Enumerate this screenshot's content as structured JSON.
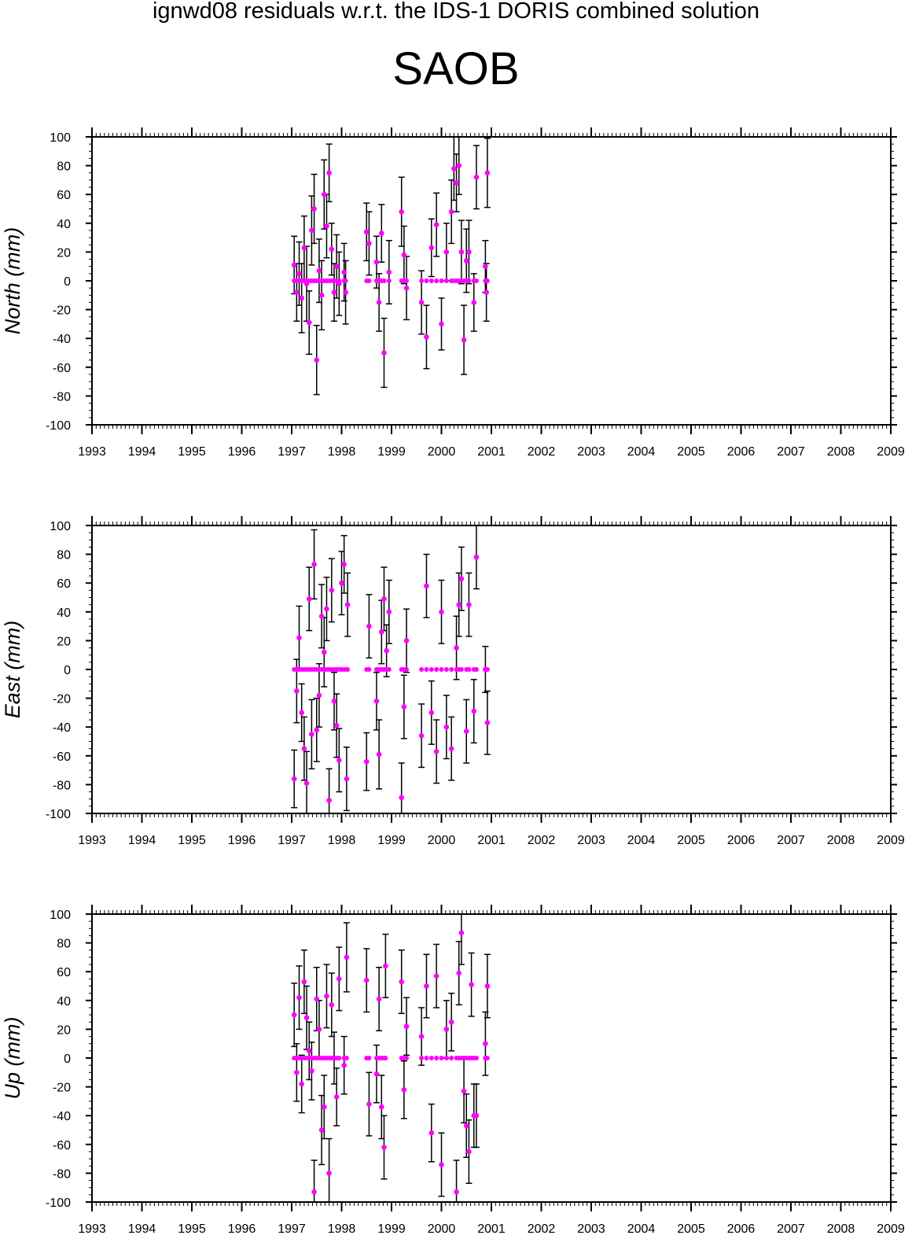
{
  "suptitle": "ignwd08 residuals w.r.t. the IDS-1 DORIS combined solution",
  "station": "SAOB",
  "colors": {
    "points": "#ff00ff",
    "errorbars": "#000000",
    "axes": "#000000"
  },
  "chart_data": [
    {
      "type": "scatter",
      "ylabel": "North (mm)",
      "xlim": [
        1993,
        2009
      ],
      "ylim": [
        -100,
        100
      ],
      "xticks": [
        "1993",
        "1994",
        "1995",
        "1996",
        "1997",
        "1998",
        "1999",
        "2000",
        "2001",
        "2002",
        "2003",
        "2004",
        "2005",
        "2006",
        "2007",
        "2008",
        "2009"
      ],
      "yticks": [
        "100",
        "80",
        "60",
        "40",
        "20",
        "0",
        "-20",
        "-40",
        "-60",
        "-80",
        "-100"
      ],
      "grid": false,
      "points": [
        {
          "x": 1997.05,
          "y": 11,
          "err": 20
        },
        {
          "x": 1997.1,
          "y": -8,
          "err": 20
        },
        {
          "x": 1997.15,
          "y": 5,
          "err": 22
        },
        {
          "x": 1997.2,
          "y": -12,
          "err": 24
        },
        {
          "x": 1997.25,
          "y": 23,
          "err": 22
        },
        {
          "x": 1997.3,
          "y": -2,
          "err": 26
        },
        {
          "x": 1997.35,
          "y": -29,
          "err": 22
        },
        {
          "x": 1997.4,
          "y": 35,
          "err": 24
        },
        {
          "x": 1997.45,
          "y": 50,
          "err": 24
        },
        {
          "x": 1997.5,
          "y": -55,
          "err": 24
        },
        {
          "x": 1997.55,
          "y": 7,
          "err": 22
        },
        {
          "x": 1997.6,
          "y": -10,
          "err": 24
        },
        {
          "x": 1997.65,
          "y": 60,
          "err": 24
        },
        {
          "x": 1997.7,
          "y": 38,
          "err": 22
        },
        {
          "x": 1997.75,
          "y": 75,
          "err": 20
        },
        {
          "x": 1997.8,
          "y": 22,
          "err": 18
        },
        {
          "x": 1997.85,
          "y": -8,
          "err": 20
        },
        {
          "x": 1997.9,
          "y": 10,
          "err": 22
        },
        {
          "x": 1997.95,
          "y": -2,
          "err": 22
        },
        {
          "x": 1998.05,
          "y": 6,
          "err": 20
        },
        {
          "x": 1998.08,
          "y": -8,
          "err": 22
        },
        {
          "x": 1998.5,
          "y": 34,
          "err": 20
        },
        {
          "x": 1998.55,
          "y": 26,
          "err": 22
        },
        {
          "x": 1998.7,
          "y": 13,
          "err": 18
        },
        {
          "x": 1998.75,
          "y": -15,
          "err": 20
        },
        {
          "x": 1998.8,
          "y": 33,
          "err": 20
        },
        {
          "x": 1998.85,
          "y": -50,
          "err": 24
        },
        {
          "x": 1998.95,
          "y": 6,
          "err": 22
        },
        {
          "x": 1999.2,
          "y": 48,
          "err": 24
        },
        {
          "x": 1999.25,
          "y": 18,
          "err": 20
        },
        {
          "x": 1999.3,
          "y": -5,
          "err": 22
        },
        {
          "x": 1999.6,
          "y": -15,
          "err": 22
        },
        {
          "x": 1999.7,
          "y": -39,
          "err": 22
        },
        {
          "x": 1999.8,
          "y": 23,
          "err": 20
        },
        {
          "x": 1999.9,
          "y": 39,
          "err": 22
        },
        {
          "x": 2000.0,
          "y": -30,
          "err": 18
        },
        {
          "x": 2000.1,
          "y": 20,
          "err": 20
        },
        {
          "x": 2000.2,
          "y": 48,
          "err": 22
        },
        {
          "x": 2000.25,
          "y": 78,
          "err": 22
        },
        {
          "x": 2000.3,
          "y": 68,
          "err": 20
        },
        {
          "x": 2000.35,
          "y": 80,
          "err": 20
        },
        {
          "x": 2000.4,
          "y": 20,
          "err": 22
        },
        {
          "x": 2000.45,
          "y": -41,
          "err": 24
        },
        {
          "x": 2000.5,
          "y": 14,
          "err": 22
        },
        {
          "x": 2000.55,
          "y": 20,
          "err": 22
        },
        {
          "x": 2000.65,
          "y": -15,
          "err": 20
        },
        {
          "x": 2000.7,
          "y": 72,
          "err": 22
        },
        {
          "x": 2000.88,
          "y": 10,
          "err": 18
        },
        {
          "x": 2000.9,
          "y": -8,
          "err": 20
        },
        {
          "x": 2000.92,
          "y": 75,
          "err": 24
        }
      ]
    },
    {
      "type": "scatter",
      "ylabel": "East (mm)",
      "xlim": [
        1993,
        2009
      ],
      "ylim": [
        -100,
        100
      ],
      "xticks": [
        "1993",
        "1994",
        "1995",
        "1996",
        "1997",
        "1998",
        "1999",
        "2000",
        "2001",
        "2002",
        "2003",
        "2004",
        "2005",
        "2006",
        "2007",
        "2008",
        "2009"
      ],
      "yticks": [
        "100",
        "80",
        "60",
        "40",
        "20",
        "0",
        "-20",
        "-40",
        "-60",
        "-80",
        "-100"
      ],
      "grid": false,
      "points": [
        {
          "x": 1997.05,
          "y": -76,
          "err": 20
        },
        {
          "x": 1997.1,
          "y": -15,
          "err": 22
        },
        {
          "x": 1997.15,
          "y": 22,
          "err": 22
        },
        {
          "x": 1997.2,
          "y": -30,
          "err": 20
        },
        {
          "x": 1997.25,
          "y": -55,
          "err": 22
        },
        {
          "x": 1997.3,
          "y": -79,
          "err": 22
        },
        {
          "x": 1997.35,
          "y": 49,
          "err": 22
        },
        {
          "x": 1997.4,
          "y": -45,
          "err": 24
        },
        {
          "x": 1997.45,
          "y": 73,
          "err": 24
        },
        {
          "x": 1997.5,
          "y": -42,
          "err": 22
        },
        {
          "x": 1997.55,
          "y": -18,
          "err": 22
        },
        {
          "x": 1997.6,
          "y": 37,
          "err": 22
        },
        {
          "x": 1997.65,
          "y": 12,
          "err": 24
        },
        {
          "x": 1997.7,
          "y": 42,
          "err": 22
        },
        {
          "x": 1997.75,
          "y": -91,
          "err": 22
        },
        {
          "x": 1997.8,
          "y": 55,
          "err": 22
        },
        {
          "x": 1997.85,
          "y": -22,
          "err": 20
        },
        {
          "x": 1997.9,
          "y": -39,
          "err": 22
        },
        {
          "x": 1997.95,
          "y": -63,
          "err": 22
        },
        {
          "x": 1998.0,
          "y": 60,
          "err": 22
        },
        {
          "x": 1998.05,
          "y": 73,
          "err": 20
        },
        {
          "x": 1998.1,
          "y": -76,
          "err": 22
        },
        {
          "x": 1998.12,
          "y": 45,
          "err": 22
        },
        {
          "x": 1998.5,
          "y": -64,
          "err": 20
        },
        {
          "x": 1998.55,
          "y": 30,
          "err": 22
        },
        {
          "x": 1998.7,
          "y": -22,
          "err": 20
        },
        {
          "x": 1998.75,
          "y": -59,
          "err": 24
        },
        {
          "x": 1998.8,
          "y": 26,
          "err": 22
        },
        {
          "x": 1998.85,
          "y": 49,
          "err": 22
        },
        {
          "x": 1998.9,
          "y": 13,
          "err": 18
        },
        {
          "x": 1998.95,
          "y": 40,
          "err": 22
        },
        {
          "x": 1999.2,
          "y": -89,
          "err": 24
        },
        {
          "x": 1999.25,
          "y": -26,
          "err": 22
        },
        {
          "x": 1999.3,
          "y": 20,
          "err": 22
        },
        {
          "x": 1999.6,
          "y": -46,
          "err": 22
        },
        {
          "x": 1999.7,
          "y": 58,
          "err": 22
        },
        {
          "x": 1999.8,
          "y": -30,
          "err": 22
        },
        {
          "x": 1999.9,
          "y": -57,
          "err": 22
        },
        {
          "x": 2000.0,
          "y": 40,
          "err": 22
        },
        {
          "x": 2000.1,
          "y": -40,
          "err": 22
        },
        {
          "x": 2000.2,
          "y": -55,
          "err": 22
        },
        {
          "x": 2000.3,
          "y": 15,
          "err": 22
        },
        {
          "x": 2000.35,
          "y": 45,
          "err": 22
        },
        {
          "x": 2000.4,
          "y": 63,
          "err": 22
        },
        {
          "x": 2000.5,
          "y": -43,
          "err": 22
        },
        {
          "x": 2000.55,
          "y": 45,
          "err": 22
        },
        {
          "x": 2000.65,
          "y": -29,
          "err": 22
        },
        {
          "x": 2000.7,
          "y": 78,
          "err": 22
        },
        {
          "x": 2000.88,
          "y": 0,
          "err": 16
        },
        {
          "x": 2000.92,
          "y": -37,
          "err": 22
        }
      ]
    },
    {
      "type": "scatter",
      "ylabel": "Up (mm)",
      "xlim": [
        1993,
        2009
      ],
      "ylim": [
        -100,
        100
      ],
      "xticks": [
        "1993",
        "1994",
        "1995",
        "1996",
        "1997",
        "1998",
        "1999",
        "2000",
        "2001",
        "2002",
        "2003",
        "2004",
        "2005",
        "2006",
        "2007",
        "2008",
        "2009"
      ],
      "yticks": [
        "100",
        "80",
        "60",
        "40",
        "20",
        "0",
        "-20",
        "-40",
        "-60",
        "-80",
        "-100"
      ],
      "grid": false,
      "points": [
        {
          "x": 1997.05,
          "y": 30,
          "err": 22
        },
        {
          "x": 1997.1,
          "y": -10,
          "err": 20
        },
        {
          "x": 1997.15,
          "y": 42,
          "err": 22
        },
        {
          "x": 1997.2,
          "y": -18,
          "err": 20
        },
        {
          "x": 1997.25,
          "y": 53,
          "err": 22
        },
        {
          "x": 1997.3,
          "y": 28,
          "err": 22
        },
        {
          "x": 1997.35,
          "y": 5,
          "err": 20
        },
        {
          "x": 1997.4,
          "y": -9,
          "err": 20
        },
        {
          "x": 1997.45,
          "y": -93,
          "err": 22
        },
        {
          "x": 1997.5,
          "y": 41,
          "err": 22
        },
        {
          "x": 1997.55,
          "y": 20,
          "err": 20
        },
        {
          "x": 1997.6,
          "y": -50,
          "err": 24
        },
        {
          "x": 1997.65,
          "y": -34,
          "err": 22
        },
        {
          "x": 1997.7,
          "y": 43,
          "err": 22
        },
        {
          "x": 1997.75,
          "y": -80,
          "err": 24
        },
        {
          "x": 1997.8,
          "y": 37,
          "err": 22
        },
        {
          "x": 1997.85,
          "y": 0,
          "err": 18
        },
        {
          "x": 1997.9,
          "y": -27,
          "err": 20
        },
        {
          "x": 1997.95,
          "y": 55,
          "err": 22
        },
        {
          "x": 1998.05,
          "y": -5,
          "err": 20
        },
        {
          "x": 1998.1,
          "y": 70,
          "err": 24
        },
        {
          "x": 1998.5,
          "y": 54,
          "err": 22
        },
        {
          "x": 1998.55,
          "y": -32,
          "err": 22
        },
        {
          "x": 1998.7,
          "y": -11,
          "err": 20
        },
        {
          "x": 1998.75,
          "y": 41,
          "err": 22
        },
        {
          "x": 1998.8,
          "y": -34,
          "err": 22
        },
        {
          "x": 1998.85,
          "y": -62,
          "err": 22
        },
        {
          "x": 1998.88,
          "y": 64,
          "err": 22
        },
        {
          "x": 1999.2,
          "y": 53,
          "err": 22
        },
        {
          "x": 1999.25,
          "y": -22,
          "err": 20
        },
        {
          "x": 1999.3,
          "y": 22,
          "err": 20
        },
        {
          "x": 1999.6,
          "y": 15,
          "err": 20
        },
        {
          "x": 1999.7,
          "y": 50,
          "err": 22
        },
        {
          "x": 1999.8,
          "y": -52,
          "err": 20
        },
        {
          "x": 1999.9,
          "y": 57,
          "err": 22
        },
        {
          "x": 2000.0,
          "y": -74,
          "err": 22
        },
        {
          "x": 2000.1,
          "y": 20,
          "err": 20
        },
        {
          "x": 2000.2,
          "y": 25,
          "err": 20
        },
        {
          "x": 2000.3,
          "y": -93,
          "err": 22
        },
        {
          "x": 2000.35,
          "y": 59,
          "err": 22
        },
        {
          "x": 2000.4,
          "y": 87,
          "err": 22
        },
        {
          "x": 2000.45,
          "y": -23,
          "err": 22
        },
        {
          "x": 2000.5,
          "y": -47,
          "err": 22
        },
        {
          "x": 2000.55,
          "y": -65,
          "err": 22
        },
        {
          "x": 2000.6,
          "y": 51,
          "err": 22
        },
        {
          "x": 2000.65,
          "y": -40,
          "err": 22
        },
        {
          "x": 2000.7,
          "y": -40,
          "err": 22
        },
        {
          "x": 2000.88,
          "y": 10,
          "err": 22
        },
        {
          "x": 2000.92,
          "y": 50,
          "err": 22
        }
      ]
    }
  ]
}
